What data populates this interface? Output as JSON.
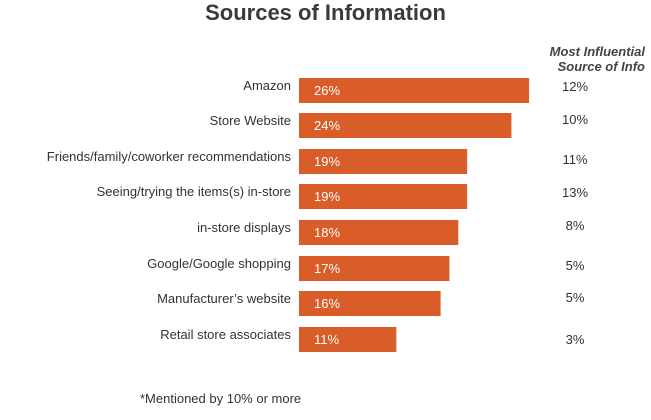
{
  "chart_data": {
    "type": "bar",
    "orientation": "horizontal",
    "title": "Sources of Information",
    "side_header_line1": "Most Influential",
    "side_header_line2": "Source of Info",
    "categories": [
      "Amazon",
      "Store Website",
      "Friends/family/coworker recommendations",
      "Seeing/trying the items(s) in-store",
      "in-store displays",
      "Google/Google shopping",
      "Manufacturer’s website",
      "Retail store associates"
    ],
    "series": [
      {
        "values": [
          26,
          24,
          19,
          19,
          18,
          17,
          16,
          11
        ]
      }
    ],
    "data_labels": [
      "26%",
      "24%",
      "19%",
      "19%",
      "18%",
      "17%",
      "16%",
      "11%"
    ],
    "most_influential": [
      "12%",
      "10%",
      "11%",
      "13%",
      "8%",
      "5%",
      "5%",
      "3%"
    ],
    "bar_color": "#d95d28",
    "footnote": "*Mentioned by 10% or more"
  }
}
